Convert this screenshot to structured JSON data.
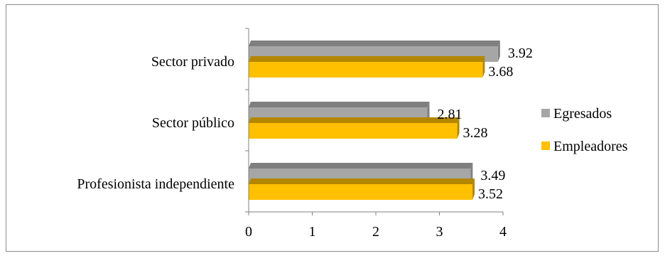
{
  "chart_data": {
    "type": "bar",
    "orientation": "horizontal",
    "style": "3d",
    "categories": [
      "Sector privado",
      "Sector público",
      "Profesionista independiente"
    ],
    "series": [
      {
        "name": "Egresados",
        "values": [
          3.92,
          2.81,
          3.49
        ],
        "color": "#a6a6a6",
        "top_color": "#7f7f7f"
      },
      {
        "name": "Empleadores",
        "values": [
          3.68,
          3.28,
          3.52
        ],
        "color": "#ffc000",
        "top_color": "#b38600"
      }
    ],
    "xlim": [
      0,
      4
    ],
    "xticks": [
      "0",
      "1",
      "2",
      "3",
      "4"
    ],
    "grid": false,
    "legend": "right",
    "xlabel": "",
    "ylabel": "",
    "title": ""
  }
}
